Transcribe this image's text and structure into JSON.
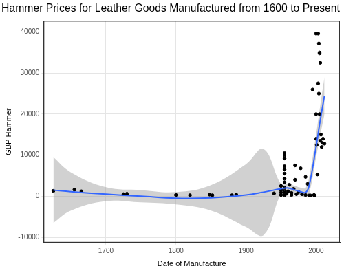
{
  "chart_data": {
    "type": "scatter",
    "title": "Hammer Prices for Leather Goods Manufactured from 1600 to Present",
    "x_label": "Date of Manufacture",
    "y_label": "GBP Hammer",
    "xlim": [
      1611,
      2034
    ],
    "ylim": [
      -11300,
      42700
    ],
    "xticks": [
      1700,
      1800,
      1900,
      2000
    ],
    "yticks": [
      -10000,
      0,
      10000,
      20000,
      30000,
      40000
    ],
    "grid": true,
    "series": [
      {
        "type": "scatter",
        "color": "#000000",
        "marker": "circle",
        "x": [
          1625,
          1655,
          1665,
          1725,
          1730,
          1800,
          1820,
          1848,
          1852,
          1880,
          1886,
          1940,
          1950,
          1950,
          1950,
          1950,
          1955,
          1955,
          1955,
          1955,
          1955,
          1955,
          1955,
          1955,
          1955,
          1955,
          1955,
          1958,
          1960,
          1962,
          1965,
          1965,
          1968,
          1970,
          1970,
          1972,
          1975,
          1978,
          1980,
          1985,
          1985,
          1988,
          1990,
          1992,
          1995,
          1997,
          1998,
          2000,
          2000,
          2000,
          2001,
          2002,
          2003,
          2003,
          2004,
          2004,
          2005,
          2005,
          2005,
          2006,
          2006,
          2007,
          2008,
          2009,
          2010,
          2012
        ],
        "values": [
          1300,
          1600,
          1200,
          500,
          600,
          300,
          250,
          400,
          250,
          250,
          400,
          700,
          2500,
          1500,
          900,
          300,
          10500,
          10000,
          9200,
          7300,
          6500,
          5500,
          4300,
          3400,
          2000,
          1000,
          300,
          600,
          1200,
          2800,
          800,
          300,
          1800,
          7500,
          4000,
          500,
          1000,
          6800,
          500,
          4700,
          300,
          3000,
          200,
          200,
          26000,
          300,
          200,
          39600,
          20000,
          14000,
          12500,
          5300,
          39600,
          27500,
          37200,
          25000,
          35000,
          34800,
          20000,
          32500,
          13500,
          15000,
          12000,
          13000,
          14000,
          12800
        ]
      },
      {
        "type": "line",
        "color": "#3366ff",
        "line_style": "solid",
        "x": [
          1625,
          1650,
          1700,
          1750,
          1800,
          1850,
          1900,
          1925,
          1950,
          1960,
          1970,
          1980,
          1985,
          1990,
          2000,
          2005,
          2012
        ],
        "values": [
          1500,
          1100,
          500,
          0,
          -500,
          -400,
          300,
          1000,
          1800,
          2000,
          1500,
          1000,
          900,
          2500,
          12000,
          17500,
          24500
        ],
        "lower": [
          -6500,
          -3500,
          -1200,
          -1500,
          -2000,
          -3500,
          -7500,
          -9500,
          500,
          1000,
          500,
          0,
          -200,
          500,
          9500,
          14000,
          20000
        ],
        "upper": [
          9500,
          5800,
          2200,
          1500,
          1000,
          2700,
          7800,
          11500,
          3000,
          3000,
          2500,
          2000,
          2000,
          4500,
          15000,
          21000,
          29000
        ]
      }
    ]
  }
}
